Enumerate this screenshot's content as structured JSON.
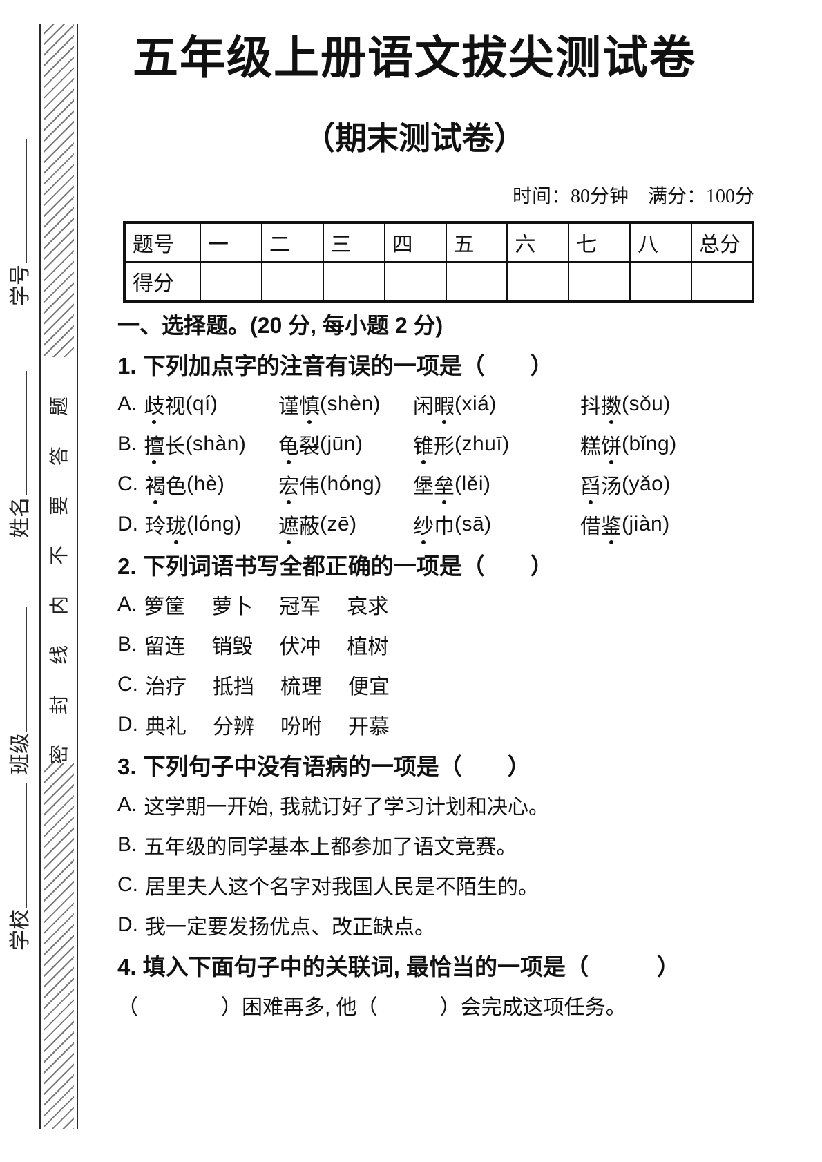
{
  "sidebar": {
    "fields": [
      {
        "label": "学号"
      },
      {
        "label": "姓名"
      },
      {
        "label": "班级"
      },
      {
        "label": "学校"
      }
    ],
    "seal_text": "密封线内不要答题"
  },
  "header": {
    "title": "五年级上册语文拔尖测试卷",
    "subtitle": "（期末测试卷）",
    "meta": "时间：80分钟　满分：100分"
  },
  "score_table": {
    "row1_label": "题号",
    "row2_label": "得分",
    "columns": [
      "一",
      "二",
      "三",
      "四",
      "五",
      "六",
      "七",
      "八",
      "总分"
    ]
  },
  "section": {
    "heading": "一、选择题。(20 分, 每小题 2 分)",
    "questions": [
      {
        "number": "1.",
        "stem": "下列加点字的注音有误的一项是（　　）",
        "type": "pinyin",
        "options": [
          {
            "label": "A.",
            "items": [
              {
                "word": "歧视",
                "dot": 0,
                "pinyin": "qí"
              },
              {
                "word": "谨慎",
                "dot": 1,
                "pinyin": "shèn"
              },
              {
                "word": "闲暇",
                "dot": 1,
                "pinyin": "xiá"
              },
              {
                "word": "抖擞",
                "dot": 1,
                "pinyin": "sǒu"
              }
            ]
          },
          {
            "label": "B.",
            "items": [
              {
                "word": "擅长",
                "dot": 0,
                "pinyin": "shàn"
              },
              {
                "word": "龟裂",
                "dot": 0,
                "pinyin": "jūn"
              },
              {
                "word": "锥形",
                "dot": 0,
                "pinyin": "zhuī"
              },
              {
                "word": "糕饼",
                "dot": 1,
                "pinyin": "bǐng"
              }
            ]
          },
          {
            "label": "C.",
            "items": [
              {
                "word": "褐色",
                "dot": 0,
                "pinyin": "hè"
              },
              {
                "word": "宏伟",
                "dot": 0,
                "pinyin": "hóng"
              },
              {
                "word": "堡垒",
                "dot": 1,
                "pinyin": "lěi"
              },
              {
                "word": "舀汤",
                "dot": 0,
                "pinyin": "yǎo"
              }
            ]
          },
          {
            "label": "D.",
            "items": [
              {
                "word": "玲珑",
                "dot": 1,
                "pinyin": "lóng"
              },
              {
                "word": "遮蔽",
                "dot": 0,
                "pinyin": "zē"
              },
              {
                "word": "纱巾",
                "dot": 0,
                "pinyin": "sā"
              },
              {
                "word": "借鉴",
                "dot": 1,
                "pinyin": "jiàn"
              }
            ]
          }
        ]
      },
      {
        "number": "2.",
        "stem": "下列词语书写全都正确的一项是（　　）",
        "type": "words",
        "options": [
          {
            "label": "A.",
            "words": [
              "箩筐",
              "萝卜",
              "冠军",
              "哀求"
            ]
          },
          {
            "label": "B.",
            "words": [
              "留连",
              "销毁",
              "伏冲",
              "植树"
            ]
          },
          {
            "label": "C.",
            "words": [
              "治疗",
              "抵挡",
              "梳理",
              "便宜"
            ]
          },
          {
            "label": "D.",
            "words": [
              "典礼",
              "分辨",
              "吩咐",
              "开慕"
            ]
          }
        ]
      },
      {
        "number": "3.",
        "stem": "下列句子中没有语病的一项是（　　）",
        "type": "sentences",
        "options": [
          {
            "label": "A.",
            "text": "这学期一开始, 我就订好了学习计划和决心。"
          },
          {
            "label": "B.",
            "text": "五年级的同学基本上都参加了语文竞赛。"
          },
          {
            "label": "C.",
            "text": "居里夫人这个名字对我国人民是不陌生的。"
          },
          {
            "label": "D.",
            "text": "我一定要发扬优点、改正缺点。"
          }
        ]
      },
      {
        "number": "4.",
        "stem": "填入下面句子中的关联词, 最恰当的一项是（　　　）",
        "type": "fill",
        "sentence": "（　　　　）困难再多, 他（　　　）会完成这项任务。"
      }
    ]
  }
}
